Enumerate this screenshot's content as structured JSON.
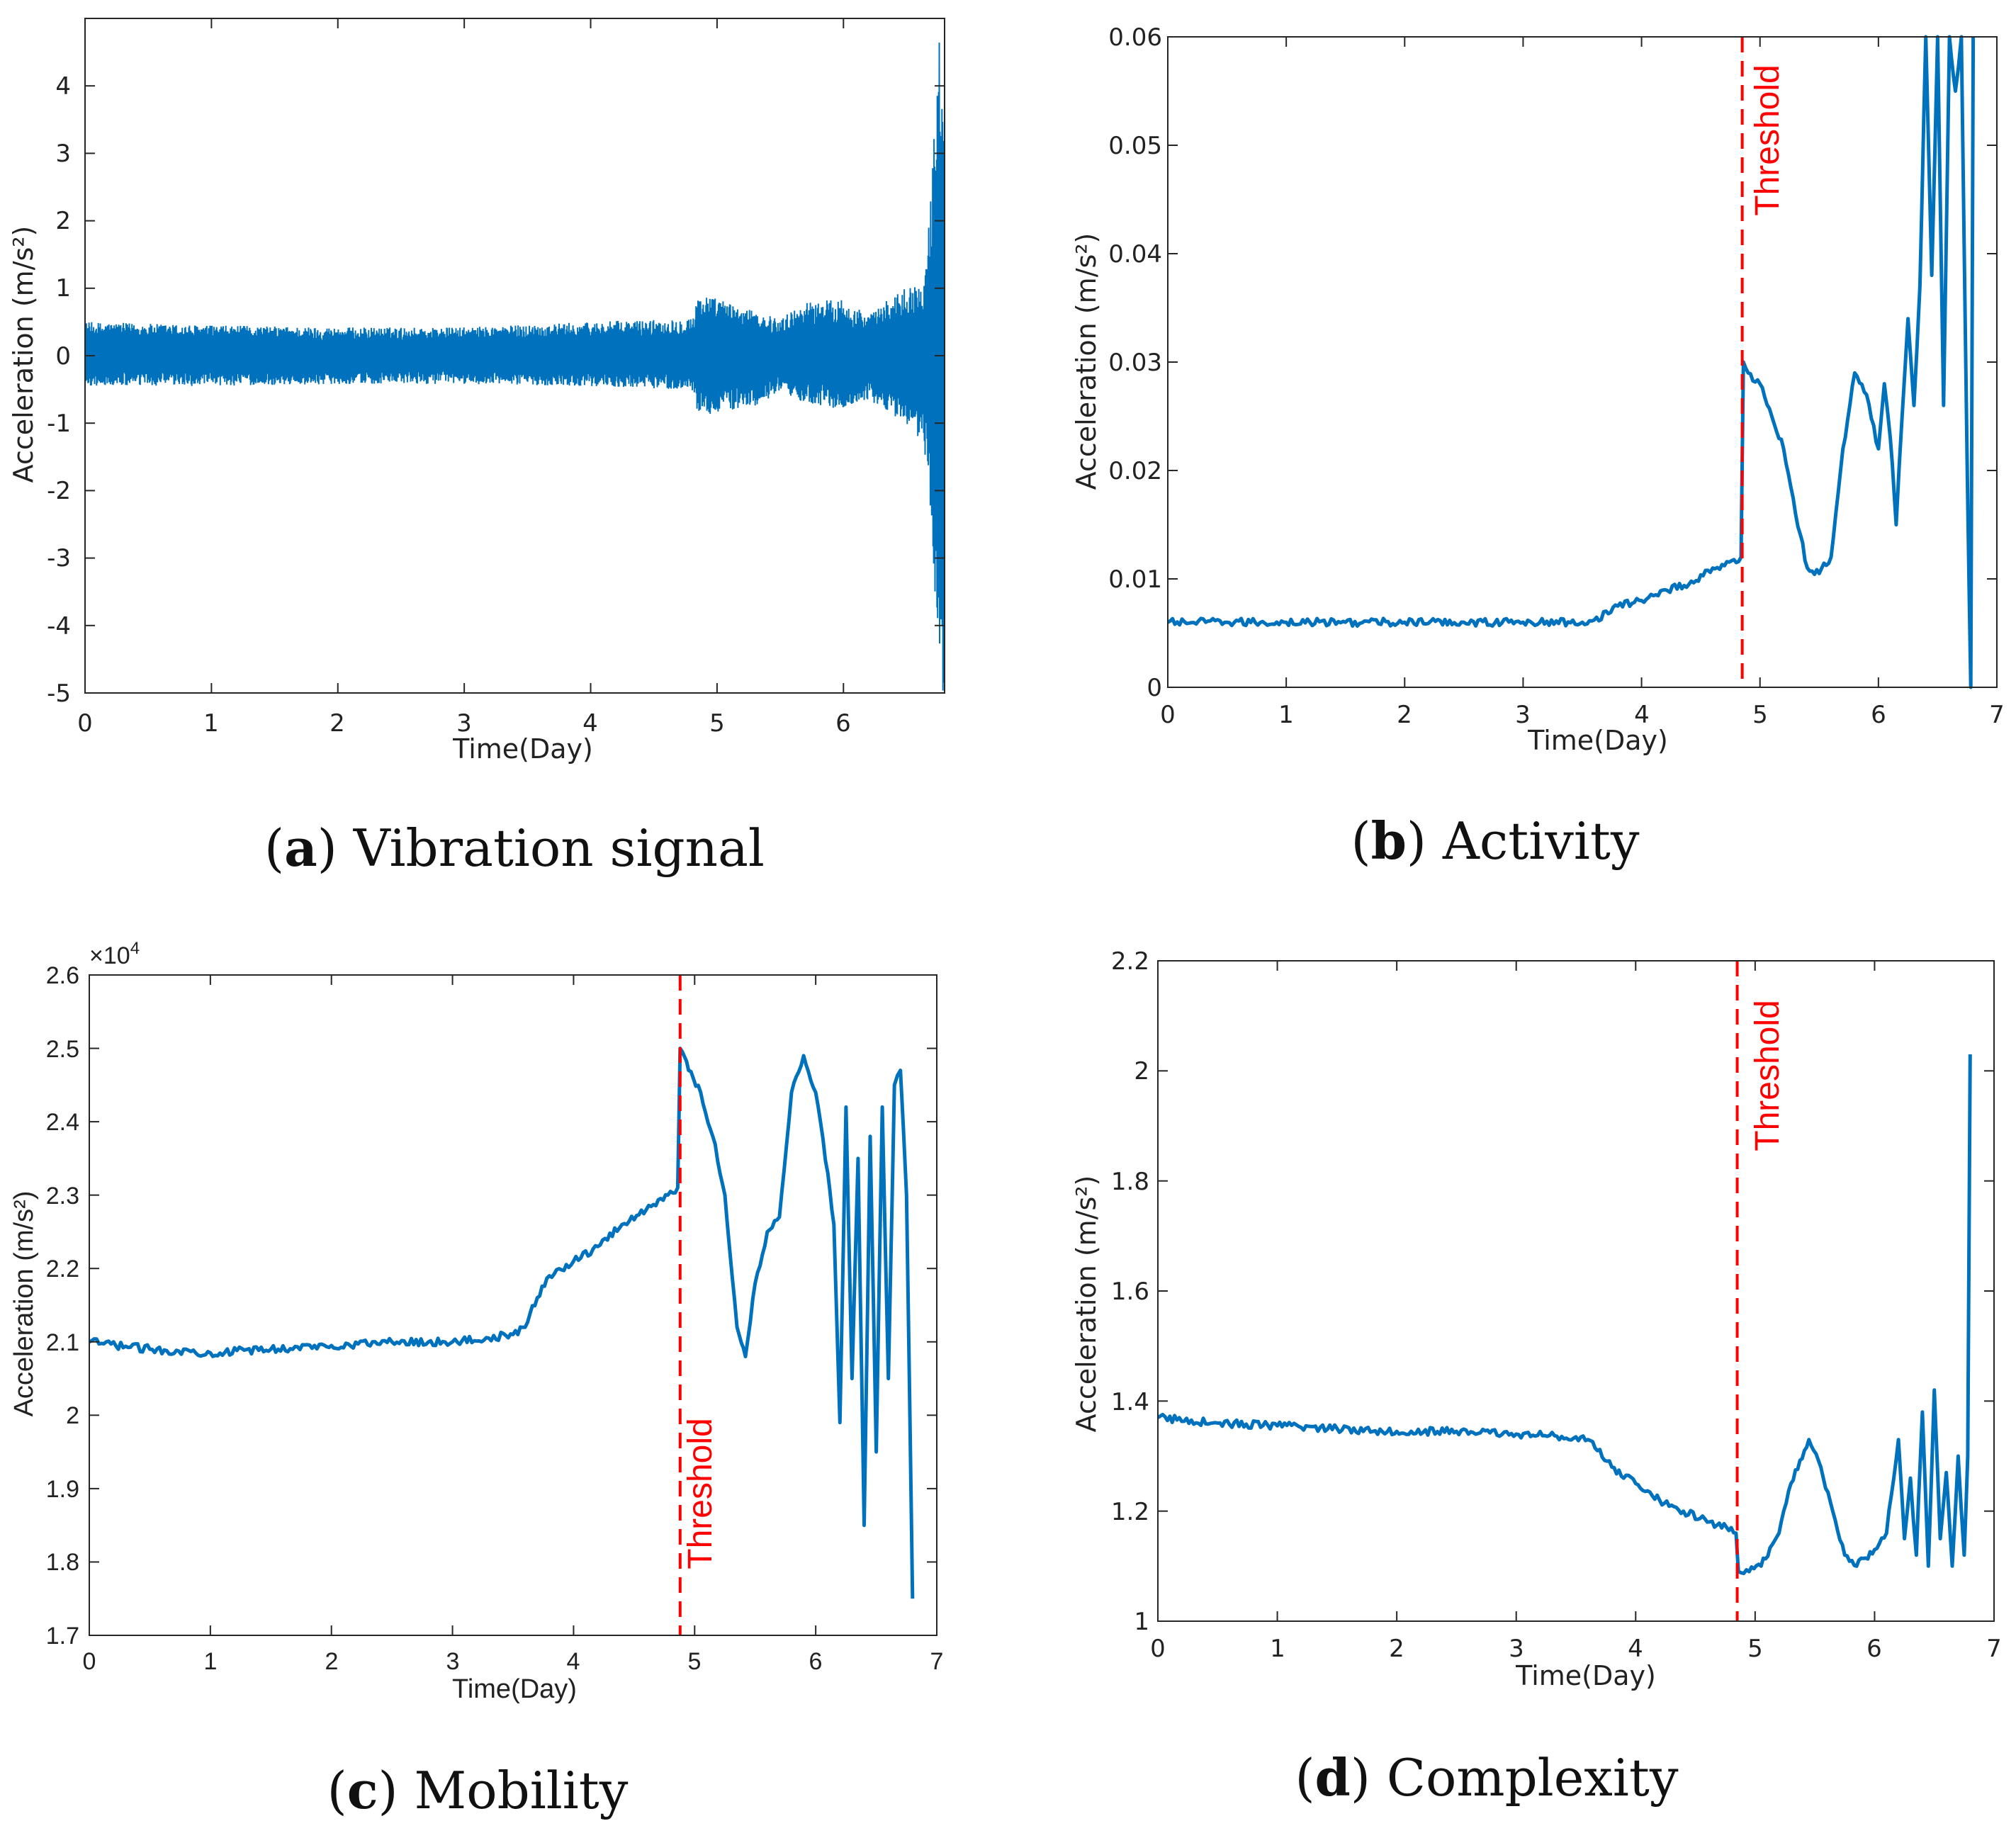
{
  "chart_data": [
    {
      "id": "a",
      "type": "line",
      "caption_letter": "a",
      "caption_text": "Vibration signal",
      "xlabel": "Time(Day)",
      "ylabel": "Acceleration (m/s²)",
      "xlim": [
        0,
        6.8
      ],
      "ylim": [
        -5,
        5
      ],
      "xticks": [
        0,
        1,
        2,
        3,
        4,
        5,
        6
      ],
      "yticks": [
        -5,
        -4,
        -3,
        -2,
        -1,
        0,
        1,
        2,
        3,
        4
      ],
      "color": "#0072BD",
      "envelope": [
        {
          "x": 0,
          "hi": 0.5,
          "lo": -0.45
        },
        {
          "x": 1,
          "hi": 0.45,
          "lo": -0.45
        },
        {
          "x": 2,
          "hi": 0.42,
          "lo": -0.42
        },
        {
          "x": 3,
          "hi": 0.42,
          "lo": -0.42
        },
        {
          "x": 4,
          "hi": 0.5,
          "lo": -0.45
        },
        {
          "x": 4.7,
          "hi": 0.55,
          "lo": -0.5
        },
        {
          "x": 4.82,
          "hi": 0.6,
          "lo": -0.55
        },
        {
          "x": 4.85,
          "hi": 0.95,
          "lo": -0.9
        },
        {
          "x": 5.0,
          "hi": 0.85,
          "lo": -0.85
        },
        {
          "x": 5.3,
          "hi": 0.65,
          "lo": -0.75
        },
        {
          "x": 5.5,
          "hi": 0.55,
          "lo": -0.55
        },
        {
          "x": 5.7,
          "hi": 0.8,
          "lo": -0.7
        },
        {
          "x": 6.0,
          "hi": 0.85,
          "lo": -0.8
        },
        {
          "x": 6.2,
          "hi": 0.6,
          "lo": -0.65
        },
        {
          "x": 6.4,
          "hi": 0.9,
          "lo": -0.9
        },
        {
          "x": 6.55,
          "hi": 1.1,
          "lo": -1.1
        },
        {
          "x": 6.62,
          "hi": 1.0,
          "lo": -1.3
        },
        {
          "x": 6.68,
          "hi": 2.0,
          "lo": -2.0
        },
        {
          "x": 6.72,
          "hi": 3.5,
          "lo": -3.5
        },
        {
          "x": 6.76,
          "hi": 4.9,
          "lo": -5.0
        },
        {
          "x": 6.8,
          "hi": 4.9,
          "lo": -5.0
        }
      ]
    },
    {
      "id": "b",
      "type": "line",
      "caption_letter": "b",
      "caption_text": "Activity",
      "xlabel": "Time(Day)",
      "ylabel": "Acceleration (m/s²)",
      "xlim": [
        0,
        7
      ],
      "ylim": [
        0,
        0.06
      ],
      "xticks": [
        0,
        1,
        2,
        3,
        4,
        5,
        6,
        7
      ],
      "yticks": [
        0,
        0.01,
        0.02,
        0.03,
        0.04,
        0.05,
        0.06
      ],
      "ytick_labels": [
        "0",
        "0.01",
        "0.02",
        "0.03",
        "0.04",
        "0.05",
        "0.06"
      ],
      "threshold_x": 4.85,
      "threshold_label": "Threshold",
      "threshold_color": "#ff0000",
      "color": "#0072BD",
      "x": [
        0,
        0.5,
        1,
        1.5,
        2,
        2.5,
        3,
        3.5,
        3.6,
        3.8,
        4.0,
        4.2,
        4.4,
        4.6,
        4.8,
        4.84,
        4.86,
        4.9,
        5.0,
        5.1,
        5.2,
        5.3,
        5.4,
        5.5,
        5.6,
        5.7,
        5.8,
        5.9,
        6.0,
        6.05,
        6.1,
        6.15,
        6.2,
        6.25,
        6.3,
        6.35,
        6.4,
        6.45,
        6.5,
        6.55,
        6.6,
        6.65,
        6.7,
        6.75,
        6.78,
        6.8
      ],
      "y": [
        0.006,
        0.006,
        0.006,
        0.006,
        0.006,
        0.006,
        0.006,
        0.006,
        0.0062,
        0.0075,
        0.008,
        0.009,
        0.0095,
        0.011,
        0.0115,
        0.012,
        0.03,
        0.029,
        0.028,
        0.025,
        0.022,
        0.016,
        0.011,
        0.0105,
        0.012,
        0.022,
        0.029,
        0.027,
        0.022,
        0.028,
        0.023,
        0.015,
        0.025,
        0.034,
        0.026,
        0.037,
        0.06,
        0.038,
        0.06,
        0.026,
        0.06,
        0.055,
        0.06,
        0.02,
        0.0,
        0.06
      ]
    },
    {
      "id": "c",
      "type": "line",
      "caption_letter": "c",
      "caption_text": "Mobility",
      "xlabel": "Time(Day)",
      "ylabel": "Acceleration (m/s²)",
      "xlim": [
        0,
        7
      ],
      "ylim": [
        1.7,
        2.6
      ],
      "xticks": [
        0,
        1,
        2,
        3,
        4,
        5,
        6,
        7
      ],
      "yticks": [
        1.7,
        1.8,
        1.9,
        2,
        2.1,
        2.2,
        2.3,
        2.4,
        2.5,
        2.6
      ],
      "ytick_labels": [
        "1.7",
        "1.8",
        "1.9",
        "2",
        "2.1",
        "2.2",
        "2.3",
        "2.4",
        "2.5",
        "2.6"
      ],
      "exponent_label": "×10",
      "exponent_power": "4",
      "threshold_x": 4.88,
      "threshold_label": "Threshold",
      "threshold_color": "#ff0000",
      "color": "#0072BD",
      "x": [
        0,
        0.5,
        1,
        1.5,
        2,
        2.5,
        3,
        3.3,
        3.5,
        3.6,
        3.7,
        3.8,
        4.0,
        4.2,
        4.4,
        4.6,
        4.8,
        4.86,
        4.88,
        4.95,
        5.05,
        5.15,
        5.25,
        5.35,
        5.42,
        5.5,
        5.6,
        5.7,
        5.8,
        5.9,
        6.0,
        6.1,
        6.15,
        6.2,
        6.25,
        6.3,
        6.35,
        6.4,
        6.45,
        6.5,
        6.55,
        6.6,
        6.65,
        6.7,
        6.75,
        6.8
      ],
      "y": [
        2.1,
        2.09,
        2.085,
        2.09,
        2.095,
        2.1,
        2.1,
        2.105,
        2.11,
        2.12,
        2.16,
        2.19,
        2.21,
        2.23,
        2.26,
        2.28,
        2.305,
        2.31,
        2.5,
        2.47,
        2.44,
        2.38,
        2.3,
        2.12,
        2.08,
        2.18,
        2.25,
        2.27,
        2.44,
        2.49,
        2.44,
        2.33,
        2.26,
        1.99,
        2.42,
        2.05,
        2.35,
        1.85,
        2.38,
        1.95,
        2.42,
        2.05,
        2.45,
        2.47,
        2.3,
        1.75
      ]
    },
    {
      "id": "d",
      "type": "line",
      "caption_letter": "d",
      "caption_text": "Complexity",
      "xlabel": "Time(Day)",
      "ylabel": "Acceleration (m/s²)",
      "xlim": [
        0,
        7
      ],
      "ylim": [
        1,
        2.2
      ],
      "xticks": [
        0,
        1,
        2,
        3,
        4,
        5,
        6,
        7
      ],
      "yticks": [
        1,
        1.2,
        1.4,
        1.6,
        1.8,
        2,
        2.2
      ],
      "ytick_labels": [
        "1",
        "1.2",
        "1.4",
        "1.6",
        "1.8",
        "2",
        "2.2"
      ],
      "threshold_x": 4.85,
      "threshold_label": "Threshold",
      "threshold_color": "#ff0000",
      "color": "#0072BD",
      "x": [
        0,
        0.5,
        1,
        1.5,
        2,
        2.5,
        3,
        3.5,
        3.6,
        3.8,
        4.0,
        4.2,
        4.4,
        4.6,
        4.8,
        4.84,
        4.86,
        4.95,
        5.05,
        5.2,
        5.3,
        5.45,
        5.55,
        5.65,
        5.75,
        5.85,
        6.0,
        6.1,
        6.2,
        6.25,
        6.3,
        6.35,
        6.4,
        6.45,
        6.5,
        6.55,
        6.6,
        6.65,
        6.7,
        6.75,
        6.78,
        6.8
      ],
      "y": [
        1.37,
        1.36,
        1.355,
        1.35,
        1.345,
        1.345,
        1.34,
        1.335,
        1.33,
        1.28,
        1.25,
        1.22,
        1.2,
        1.18,
        1.17,
        1.16,
        1.09,
        1.09,
        1.1,
        1.16,
        1.25,
        1.33,
        1.28,
        1.2,
        1.12,
        1.1,
        1.13,
        1.16,
        1.33,
        1.15,
        1.26,
        1.12,
        1.38,
        1.1,
        1.42,
        1.15,
        1.27,
        1.1,
        1.3,
        1.12,
        1.3,
        2.03
      ]
    }
  ]
}
